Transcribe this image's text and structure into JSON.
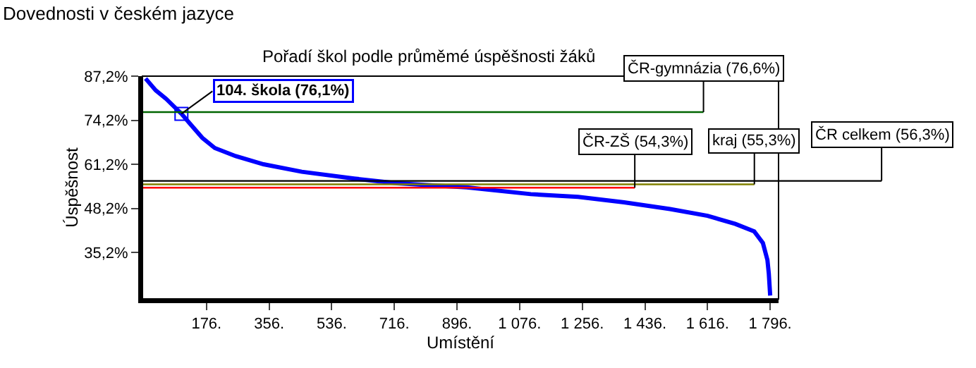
{
  "chart_data": {
    "type": "line",
    "title": "Dovednosti v českém jazyce",
    "subtitle": "Pořadí škol podle průměmé úspěšnosti žáků",
    "xlabel": "Umístění",
    "ylabel": "Úspěšnost",
    "series": [
      {
        "color": "#0000ff",
        "x": [
          1,
          30,
          60,
          104,
          130,
          164,
          200,
          260,
          340,
          450,
          600,
          724,
          924,
          1108,
          1244,
          1376,
          1508,
          1616,
          1696,
          1750,
          1775,
          1788,
          1792,
          1796
        ],
        "values": [
          86.5,
          83,
          80.5,
          76.1,
          73,
          69,
          66,
          63.6,
          61.2,
          59,
          57,
          55.6,
          54.4,
          52.4,
          51.6,
          50,
          48,
          46,
          43.6,
          41.4,
          38,
          33,
          29,
          22.5
        ]
      }
    ],
    "annotations": [
      {
        "text": "104. škola (76,1%)",
        "x": 104,
        "y": 76.1
      }
    ],
    "ref_lines": [
      {
        "axis": "y",
        "value": 76.6,
        "label": "ČR-gymnázia (76,6%)",
        "color": "#006400"
      },
      {
        "axis": "y",
        "value": 54.3,
        "label": "ČR-ZŠ (54,3%)",
        "color": "#ff0000"
      },
      {
        "axis": "y",
        "value": 55.3,
        "label": "kraj (55,3%)",
        "color": "#808000"
      },
      {
        "axis": "y",
        "value": 56.3,
        "label": "ČR celkem (56,3%)",
        "color": "#000000"
      }
    ],
    "xlim": [
      -8,
      1820
    ],
    "ylim": [
      21.5,
      87.2
    ],
    "xticks": [
      {
        "value": 176,
        "label": "176."
      },
      {
        "value": 356,
        "label": "356."
      },
      {
        "value": 536,
        "label": "536."
      },
      {
        "value": 716,
        "label": "716."
      },
      {
        "value": 896,
        "label": "896."
      },
      {
        "value": 1076,
        "label": "1 076."
      },
      {
        "value": 1256,
        "label": "1 256."
      },
      {
        "value": 1436,
        "label": "1 436."
      },
      {
        "value": 1616,
        "label": "1 616."
      },
      {
        "value": 1796,
        "label": "1 796."
      }
    ],
    "yticks": [
      {
        "value": 35.2,
        "label": "35,2%"
      },
      {
        "value": 48.2,
        "label": "48,2%"
      },
      {
        "value": 61.2,
        "label": "61,2%"
      },
      {
        "value": 74.2,
        "label": "74,2%"
      },
      {
        "value": 87.2,
        "label": "87,2%"
      }
    ],
    "marker": "none",
    "line_style": "solid"
  }
}
